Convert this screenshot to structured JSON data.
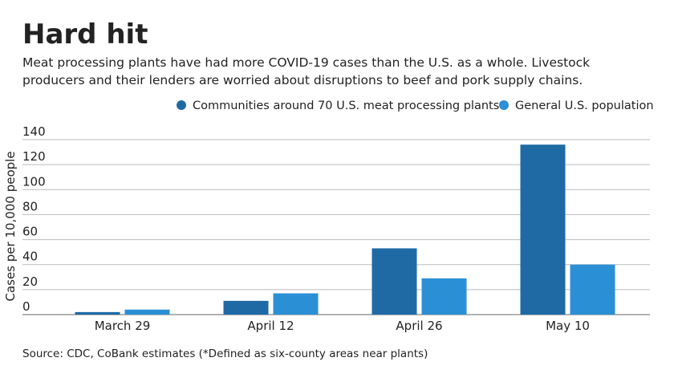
{
  "chart_data": {
    "type": "bar",
    "title": "Hard hit",
    "subtitle": [
      "Meat processing plants have had more COVID-19 cases than the U.S. as a whole. Livestock",
      "producers and their lenders are worried about disruptions to beef and pork supply chains."
    ],
    "y_label": "Cases per 10,000 people",
    "source": "Source: CDC, CoBank estimates (*Defined as six-county areas near plants)",
    "categories": [
      "March 29",
      "April 12",
      "April 26",
      "May 10"
    ],
    "series": [
      {
        "name": "Communities around 70 U.S. meat processing plants*",
        "color": "#1f6aa5",
        "values": [
          2,
          11,
          53,
          136
        ]
      },
      {
        "name": "General U.S. population",
        "color": "#2b8fd6",
        "values": [
          4,
          17,
          29,
          40
        ]
      }
    ],
    "ylim": [
      0,
      140
    ],
    "yticks": [
      0,
      20,
      40,
      60,
      80,
      100,
      120,
      140
    ],
    "grid": true
  }
}
